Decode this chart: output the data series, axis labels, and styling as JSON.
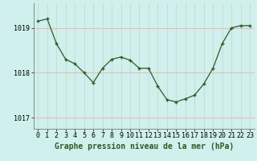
{
  "x": [
    0,
    1,
    2,
    3,
    4,
    5,
    6,
    7,
    8,
    9,
    10,
    11,
    12,
    13,
    14,
    15,
    16,
    17,
    18,
    19,
    20,
    21,
    22,
    23
  ],
  "y": [
    1019.15,
    1019.2,
    1018.65,
    1018.3,
    1018.2,
    1018.0,
    1017.78,
    1018.1,
    1018.3,
    1018.35,
    1018.28,
    1018.1,
    1018.1,
    1017.7,
    1017.4,
    1017.35,
    1017.42,
    1017.5,
    1017.75,
    1018.1,
    1018.65,
    1019.0,
    1019.05,
    1019.05
  ],
  "line_color": "#2d5a27",
  "marker": "+",
  "marker_size": 3,
  "bg_color": "#cff0ec",
  "grid_color_v": "#c8d8d0",
  "grid_color_h": "#f0b8b8",
  "xlabel": "Graphe pression niveau de la mer (hPa)",
  "xlabel_fontsize": 7,
  "ylabel_ticks": [
    1017,
    1018,
    1019
  ],
  "xlim": [
    -0.5,
    23.5
  ],
  "ylim": [
    1016.75,
    1019.55
  ],
  "tick_fontsize": 6,
  "footer_bg": "#cff0ec",
  "footer_text_color": "#2d5a27",
  "spine_color": "#888888"
}
